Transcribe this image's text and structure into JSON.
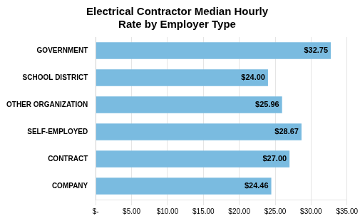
{
  "chart_data": {
    "type": "bar",
    "orientation": "horizontal",
    "title": "Electrical Contractor Median Hourly\nRate by Employer Type",
    "categories": [
      "COMPANY",
      "CONTRACT",
      "SELF-EMPLOYED",
      "OTHER ORGANIZATION",
      "SCHOOL DISTRICT",
      "GOVERNMENT"
    ],
    "values": [
      24.46,
      27.0,
      28.67,
      25.96,
      24.0,
      32.75
    ],
    "value_labels": [
      "$24.46",
      "$27.00",
      "$28.67",
      "$25.96",
      "$24.00",
      "$32.75"
    ],
    "data_labels": true,
    "color": "#7ABBE0",
    "xlim": [
      0,
      35
    ],
    "xticks": [
      {
        "value": 0,
        "label": "$-"
      },
      {
        "value": 5,
        "label": "$5.00"
      },
      {
        "value": 10,
        "label": "$10.00"
      },
      {
        "value": 15,
        "label": "$15.00"
      },
      {
        "value": 20,
        "label": "$20.00"
      },
      {
        "value": 25,
        "label": "$25.00"
      },
      {
        "value": 30,
        "label": "$30.00"
      },
      {
        "value": 35,
        "label": "$35.00"
      }
    ],
    "grid": true
  }
}
